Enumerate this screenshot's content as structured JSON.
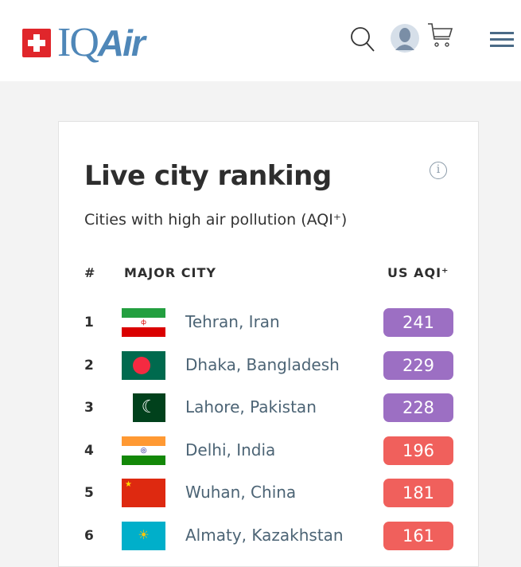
{
  "header": {
    "logo_text": "IQAir",
    "icons": [
      "search-icon",
      "user-avatar-icon",
      "cart-icon",
      "menu-icon"
    ]
  },
  "card": {
    "title": "Live city ranking",
    "subtitle": "Cities with high air pollution (AQI⁺)",
    "columns": {
      "rank": "#",
      "city": "MAJOR CITY",
      "aqi": "US AQI⁺"
    },
    "rows": [
      {
        "rank": "1",
        "city": "Tehran, Iran",
        "aqi": "241",
        "flag": "iran",
        "color": "#9c6fc3"
      },
      {
        "rank": "2",
        "city": "Dhaka, Bangladesh",
        "aqi": "229",
        "flag": "bangladesh",
        "color": "#9c6fc3"
      },
      {
        "rank": "3",
        "city": "Lahore, Pakistan",
        "aqi": "228",
        "flag": "pakistan",
        "color": "#9c6fc3"
      },
      {
        "rank": "4",
        "city": "Delhi, India",
        "aqi": "196",
        "flag": "india",
        "color": "#f0605c"
      },
      {
        "rank": "5",
        "city": "Wuhan, China",
        "aqi": "181",
        "flag": "china",
        "color": "#f0605c"
      },
      {
        "rank": "6",
        "city": "Almaty, Kazakhstan",
        "aqi": "161",
        "flag": "kazakhstan",
        "color": "#f0605c"
      }
    ]
  }
}
